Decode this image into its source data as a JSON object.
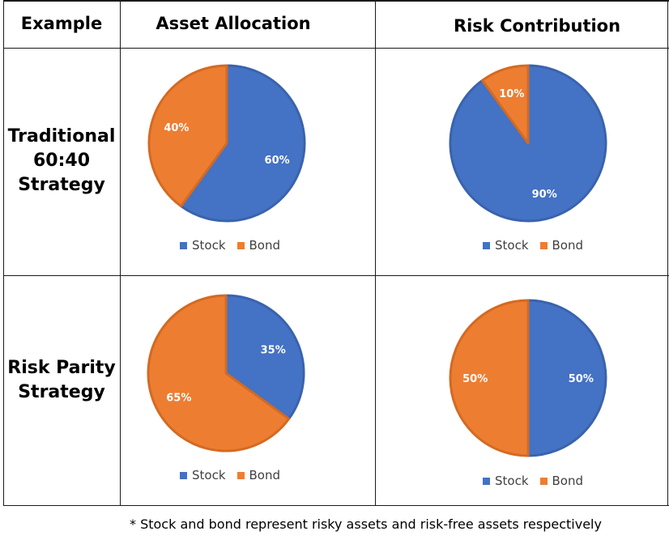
{
  "colors": {
    "stock": "#4472C4",
    "bond": "#ED7D31"
  },
  "header": {
    "col0": "Example",
    "col1": "Asset Allocation",
    "col2": "Risk Contribution"
  },
  "rows": [
    {
      "label_lines": [
        "Traditional",
        "60:40",
        "Strategy"
      ]
    },
    {
      "label_lines": [
        "Risk Parity",
        "Strategy"
      ]
    }
  ],
  "legend": {
    "stock": "Stock",
    "bond": "Bond"
  },
  "footnote": "* Stock and bond represent risky assets and risk-free assets respectively",
  "chart_data": [
    {
      "type": "pie",
      "row": "Traditional 60:40 Strategy",
      "column": "Asset Allocation",
      "categories": [
        "Stock",
        "Bond"
      ],
      "values": [
        60,
        40
      ],
      "labels": [
        "60%",
        "40%"
      ],
      "legend_placement": "bottom"
    },
    {
      "type": "pie",
      "row": "Traditional 60:40 Strategy",
      "column": "Risk Contribution",
      "categories": [
        "Stock",
        "Bond"
      ],
      "values": [
        90,
        10
      ],
      "labels": [
        "90%",
        "10%"
      ],
      "legend_placement": "bottom"
    },
    {
      "type": "pie",
      "row": "Risk Parity Strategy",
      "column": "Asset Allocation",
      "categories": [
        "Stock",
        "Bond"
      ],
      "values": [
        35,
        65
      ],
      "labels": [
        "35%",
        "65%"
      ],
      "legend_placement": "bottom"
    },
    {
      "type": "pie",
      "row": "Risk Parity Strategy",
      "column": "Risk Contribution",
      "categories": [
        "Stock",
        "Bond"
      ],
      "values": [
        50,
        50
      ],
      "labels": [
        "50%",
        "50%"
      ],
      "legend_placement": "bottom"
    }
  ]
}
